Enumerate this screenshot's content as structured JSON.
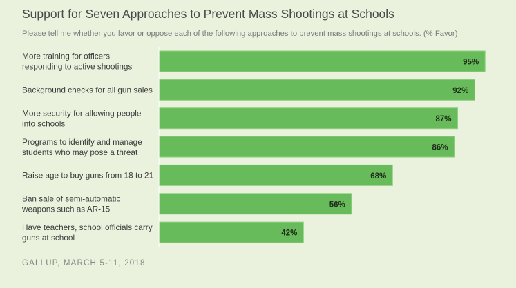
{
  "chart_data": {
    "type": "bar",
    "orientation": "horizontal",
    "title": "Support for Seven Approaches to Prevent Mass Shootings at Schools",
    "subtitle": "Please tell me whether you favor or oppose each of the following approaches to prevent mass shootings at schools. (% Favor)",
    "xlabel": "",
    "ylabel": "",
    "xlim": [
      0,
      100
    ],
    "grid": false,
    "legend": "none",
    "categories": [
      [
        "More training for officers",
        "responding to active shootings"
      ],
      [
        "Background checks for all gun sales"
      ],
      [
        "More security for allowing people",
        "into schools"
      ],
      [
        "Programs to identify and manage",
        "students who may pose a threat"
      ],
      [
        "Raise age to buy guns from 18 to 21"
      ],
      [
        "Ban sale of semi-automatic",
        "weapons such as AR-15"
      ],
      [
        "Have teachers, school officials carry",
        "guns at school"
      ]
    ],
    "values": [
      95,
      92,
      87,
      86,
      68,
      56,
      42
    ],
    "value_suffix": "%",
    "bar_color": "#68bb5a",
    "bar_edge_color": "#8fd080",
    "source": "GALLUP, MARCH 5-11, 2018"
  }
}
